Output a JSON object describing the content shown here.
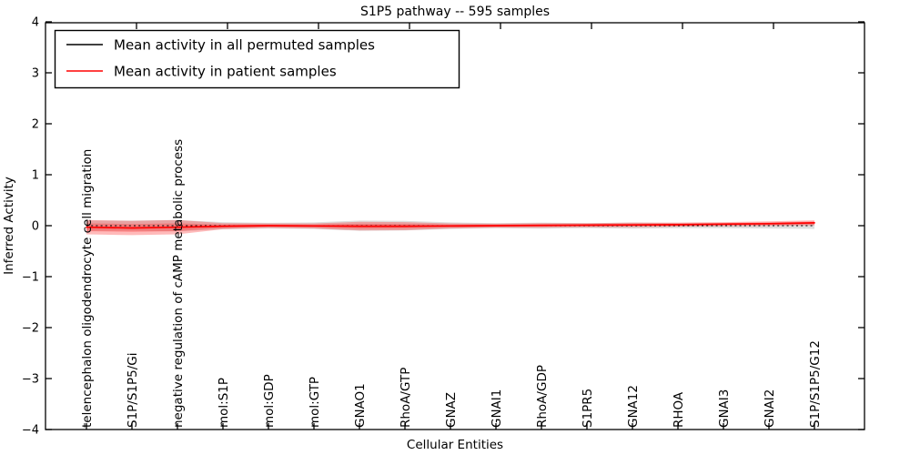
{
  "title": "S1P5 pathway -- 595 samples",
  "xlabel": "Cellular Entities",
  "ylabel": "Inferred Activity",
  "y_tick_labels": [
    "4",
    "3",
    "2",
    "1",
    "0",
    "−1",
    "−2",
    "−3",
    "−4"
  ],
  "legend": {
    "items": [
      {
        "label": "Mean activity in all permuted samples",
        "color": "#000000"
      },
      {
        "label": "Mean activity in patient samples",
        "color": "#ff0000"
      }
    ]
  },
  "chart_data": {
    "type": "line",
    "title": "S1P5 pathway -- 595 samples",
    "xlabel": "Cellular Entities",
    "ylabel": "Inferred Activity",
    "ylim": [
      -4,
      4
    ],
    "grid": false,
    "legend_position": "upper left",
    "categories": [
      "telencephalon oligodendrocyte cell migration",
      "S1P/S1P5/Gi",
      "negative regulation of cAMP metabolic process",
      "mol:S1P",
      "mol:GDP",
      "mol:GTP",
      "GNAO1",
      "RhoA/GTP",
      "GNAZ",
      "GNAI1",
      "RhoA/GDP",
      "S1PR5",
      "GNA12",
      "RHOA",
      "GNAI3",
      "GNAI2",
      "S1P/S1P5/G12"
    ],
    "series": [
      {
        "name": "Mean activity in all permuted samples",
        "color": "#000000",
        "line_style": "dashed",
        "values": [
          0,
          0,
          0,
          0,
          0,
          0,
          0,
          0,
          0,
          0,
          0,
          0,
          0,
          0,
          0,
          0,
          0
        ],
        "band": [
          0.1,
          0.1,
          0.11,
          0.07,
          0.055,
          0.065,
          0.1,
          0.095,
          0.065,
          0.05,
          0.06,
          0.05,
          0.06,
          0.05,
          0.05,
          0.055,
          0.065
        ],
        "band_color": "rgba(0,0,0,0.13)"
      },
      {
        "name": "Mean activity in patient samples",
        "color": "#ff0000",
        "line_style": "solid",
        "values": [
          -0.03,
          -0.045,
          -0.03,
          -0.01,
          0,
          -0.005,
          -0.01,
          -0.01,
          -0.005,
          0,
          0.005,
          0.01,
          0.015,
          0.02,
          0.03,
          0.04,
          0.055
        ],
        "band": [
          0.14,
          0.14,
          0.14,
          0.06,
          0.045,
          0.05,
          0.085,
          0.08,
          0.05,
          0.04,
          0.045,
          0.04,
          0.045,
          0.04,
          0.04,
          0.045,
          0.05
        ],
        "band_color": "rgba(255,0,0,0.27)",
        "band_core_color": "rgba(255,48,48,0.33)"
      }
    ]
  }
}
